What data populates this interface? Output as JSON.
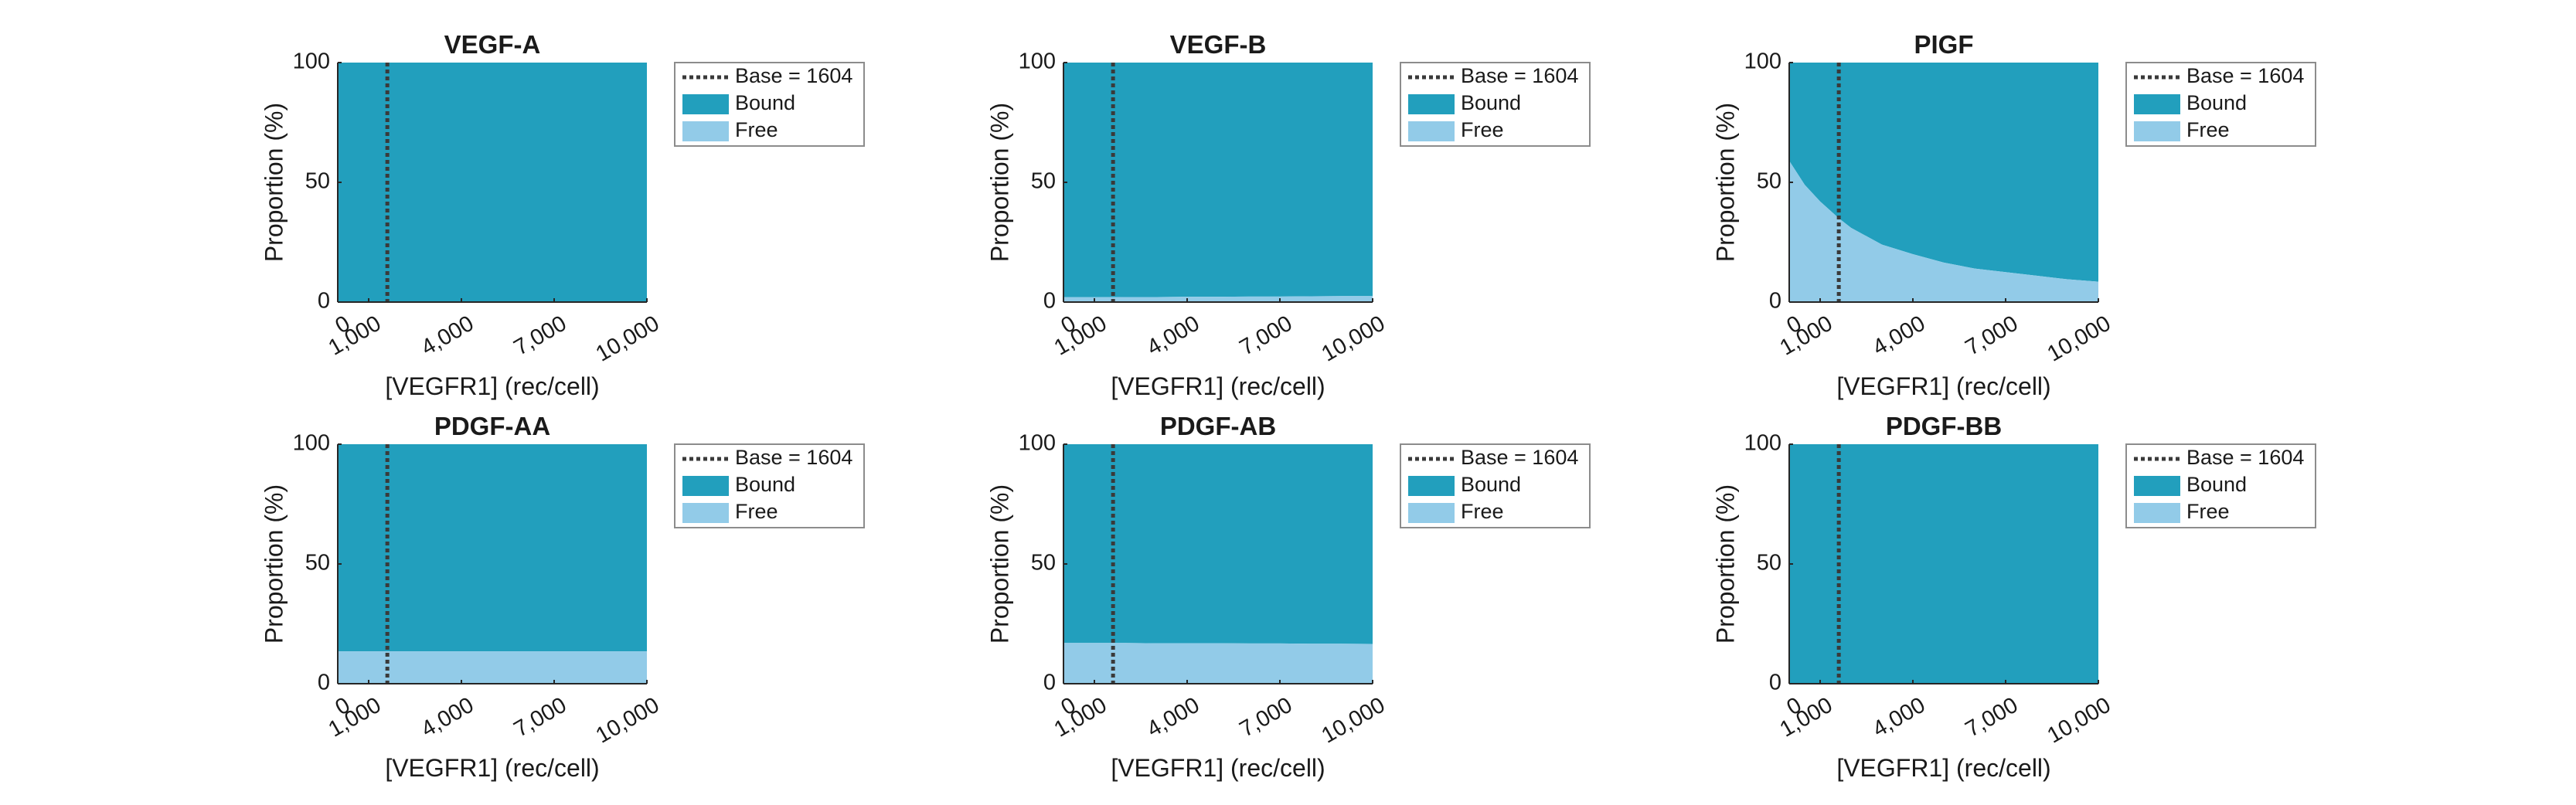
{
  "chart_data": [
    {
      "type": "area",
      "title": "VEGF-A",
      "xlabel": "[VEGFR1] (rec/cell)",
      "ylabel": "Proportion (%)",
      "xlim": [
        0,
        10000
      ],
      "ylim": [
        0,
        100
      ],
      "xticks": [
        0,
        1000,
        4000,
        7000,
        10000
      ],
      "xtick_labels": [
        "0",
        "1,000",
        "4,000",
        "7,000",
        "10,000"
      ],
      "yticks": [
        0,
        50,
        100
      ],
      "ytick_labels": [
        "0",
        "50",
        "100"
      ],
      "x": [
        0,
        1000,
        2000,
        3000,
        4000,
        5000,
        6000,
        7000,
        8000,
        9000,
        10000
      ],
      "series": [
        {
          "name": "Free",
          "color": "#92cbe8",
          "values": [
            0,
            0,
            0,
            0,
            0,
            0,
            0,
            0,
            0,
            0,
            0
          ]
        },
        {
          "name": "Bound",
          "color": "#229fbd",
          "values": [
            100,
            100,
            100,
            100,
            100,
            100,
            100,
            100,
            100,
            100,
            100
          ]
        }
      ],
      "reference_line": {
        "label": "Base = 1604",
        "x": 1604,
        "color": "#3a3a3a"
      },
      "legend": {
        "position": "outside-top-right",
        "entries": [
          "Base = 1604",
          "Bound",
          "Free"
        ]
      },
      "grid": false
    },
    {
      "type": "area",
      "title": "VEGF-B",
      "xlabel": "[VEGFR1] (rec/cell)",
      "ylabel": "Proportion (%)",
      "xlim": [
        0,
        10000
      ],
      "ylim": [
        0,
        100
      ],
      "xticks": [
        0,
        1000,
        4000,
        7000,
        10000
      ],
      "xtick_labels": [
        "0",
        "1,000",
        "4,000",
        "7,000",
        "10,000"
      ],
      "yticks": [
        0,
        50,
        100
      ],
      "ytick_labels": [
        "0",
        "50",
        "100"
      ],
      "x": [
        0,
        1000,
        2000,
        3000,
        4000,
        5000,
        6000,
        7000,
        8000,
        9000,
        10000
      ],
      "series": [
        {
          "name": "Free",
          "color": "#92cbe8",
          "values": [
            2.0,
            2.0,
            2.1,
            2.1,
            2.2,
            2.2,
            2.3,
            2.3,
            2.4,
            2.5,
            2.5
          ]
        },
        {
          "name": "Bound",
          "color": "#229fbd",
          "values": [
            98.0,
            98.0,
            97.9,
            97.9,
            97.8,
            97.8,
            97.7,
            97.7,
            97.6,
            97.5,
            97.5
          ]
        }
      ],
      "reference_line": {
        "label": "Base = 1604",
        "x": 1604,
        "color": "#3a3a3a"
      },
      "legend": {
        "position": "outside-top-right",
        "entries": [
          "Base = 1604",
          "Bound",
          "Free"
        ]
      },
      "grid": false
    },
    {
      "type": "area",
      "title": "PIGF",
      "xlabel": "[VEGFR1] (rec/cell)",
      "ylabel": "Proportion (%)",
      "xlim": [
        0,
        10000
      ],
      "ylim": [
        0,
        100
      ],
      "xticks": [
        0,
        1000,
        4000,
        7000,
        10000
      ],
      "xtick_labels": [
        "0",
        "1,000",
        "4,000",
        "7,000",
        "10,000"
      ],
      "yticks": [
        0,
        50,
        100
      ],
      "ytick_labels": [
        "0",
        "50",
        "100"
      ],
      "x": [
        0,
        500,
        1000,
        1604,
        2000,
        3000,
        4000,
        5000,
        6000,
        7000,
        8000,
        9000,
        10000
      ],
      "series": [
        {
          "name": "Free",
          "color": "#92cbe8",
          "values": [
            59,
            49,
            42,
            35,
            31,
            24,
            20,
            16.5,
            14,
            12.5,
            11,
            9.5,
            8.5
          ]
        },
        {
          "name": "Bound",
          "color": "#229fbd",
          "values": [
            41,
            51,
            58,
            65,
            69,
            76,
            80,
            83.5,
            86,
            87.5,
            89,
            90.5,
            91.5
          ]
        }
      ],
      "reference_line": {
        "label": "Base = 1604",
        "x": 1604,
        "color": "#3a3a3a"
      },
      "legend": {
        "position": "outside-top-right",
        "entries": [
          "Base = 1604",
          "Bound",
          "Free"
        ]
      },
      "grid": false
    },
    {
      "type": "area",
      "title": "PDGF-AA",
      "xlabel": "[VEGFR1] (rec/cell)",
      "ylabel": "Proportion (%)",
      "xlim": [
        0,
        10000
      ],
      "ylim": [
        0,
        100
      ],
      "xticks": [
        0,
        1000,
        4000,
        7000,
        10000
      ],
      "xtick_labels": [
        "0",
        "1,000",
        "4,000",
        "7,000",
        "10,000"
      ],
      "yticks": [
        0,
        50,
        100
      ],
      "ytick_labels": [
        "0",
        "50",
        "100"
      ],
      "x": [
        0,
        1000,
        2000,
        3000,
        4000,
        5000,
        6000,
        7000,
        8000,
        9000,
        10000
      ],
      "series": [
        {
          "name": "Free",
          "color": "#92cbe8",
          "values": [
            13.5,
            13.5,
            13.5,
            13.5,
            13.5,
            13.5,
            13.5,
            13.5,
            13.5,
            13.5,
            13.5
          ]
        },
        {
          "name": "Bound",
          "color": "#229fbd",
          "values": [
            86.5,
            86.5,
            86.5,
            86.5,
            86.5,
            86.5,
            86.5,
            86.5,
            86.5,
            86.5,
            86.5
          ]
        }
      ],
      "reference_line": {
        "label": "Base = 1604",
        "x": 1604,
        "color": "#3a3a3a"
      },
      "legend": {
        "position": "outside-top-right",
        "entries": [
          "Base = 1604",
          "Bound",
          "Free"
        ]
      },
      "grid": false
    },
    {
      "type": "area",
      "title": "PDGF-AB",
      "xlabel": "[VEGFR1] (rec/cell)",
      "ylabel": "Proportion (%)",
      "xlim": [
        0,
        10000
      ],
      "ylim": [
        0,
        100
      ],
      "xticks": [
        0,
        1000,
        4000,
        7000,
        10000
      ],
      "xtick_labels": [
        "0",
        "1,000",
        "4,000",
        "7,000",
        "10,000"
      ],
      "yticks": [
        0,
        50,
        100
      ],
      "ytick_labels": [
        "0",
        "50",
        "100"
      ],
      "x": [
        0,
        1000,
        2000,
        3000,
        4000,
        5000,
        6000,
        7000,
        8000,
        9000,
        10000
      ],
      "series": [
        {
          "name": "Free",
          "color": "#92cbe8",
          "values": [
            17.0,
            17.0,
            17.0,
            16.9,
            16.9,
            16.9,
            16.8,
            16.8,
            16.7,
            16.7,
            16.6
          ]
        },
        {
          "name": "Bound",
          "color": "#229fbd",
          "values": [
            83.0,
            83.0,
            83.0,
            83.1,
            83.1,
            83.1,
            83.2,
            83.2,
            83.3,
            83.3,
            83.4
          ]
        }
      ],
      "reference_line": {
        "label": "Base = 1604",
        "x": 1604,
        "color": "#3a3a3a"
      },
      "legend": {
        "position": "outside-top-right",
        "entries": [
          "Base = 1604",
          "Bound",
          "Free"
        ]
      },
      "grid": false
    },
    {
      "type": "area",
      "title": "PDGF-BB",
      "xlabel": "[VEGFR1] (rec/cell)",
      "ylabel": "Proportion (%)",
      "xlim": [
        0,
        10000
      ],
      "ylim": [
        0,
        100
      ],
      "xticks": [
        0,
        1000,
        4000,
        7000,
        10000
      ],
      "xtick_labels": [
        "0",
        "1,000",
        "4,000",
        "7,000",
        "10,000"
      ],
      "yticks": [
        0,
        50,
        100
      ],
      "ytick_labels": [
        "0",
        "50",
        "100"
      ],
      "x": [
        0,
        1000,
        2000,
        3000,
        4000,
        5000,
        6000,
        7000,
        8000,
        9000,
        10000
      ],
      "series": [
        {
          "name": "Free",
          "color": "#92cbe8",
          "values": [
            0,
            0,
            0,
            0,
            0,
            0,
            0,
            0,
            0,
            0,
            0
          ]
        },
        {
          "name": "Bound",
          "color": "#229fbd",
          "values": [
            100,
            100,
            100,
            100,
            100,
            100,
            100,
            100,
            100,
            100,
            100
          ]
        }
      ],
      "reference_line": {
        "label": "Base = 1604",
        "x": 1604,
        "color": "#3a3a3a"
      },
      "legend": {
        "position": "outside-top-right",
        "entries": [
          "Base = 1604",
          "Bound",
          "Free"
        ]
      },
      "grid": false
    }
  ]
}
